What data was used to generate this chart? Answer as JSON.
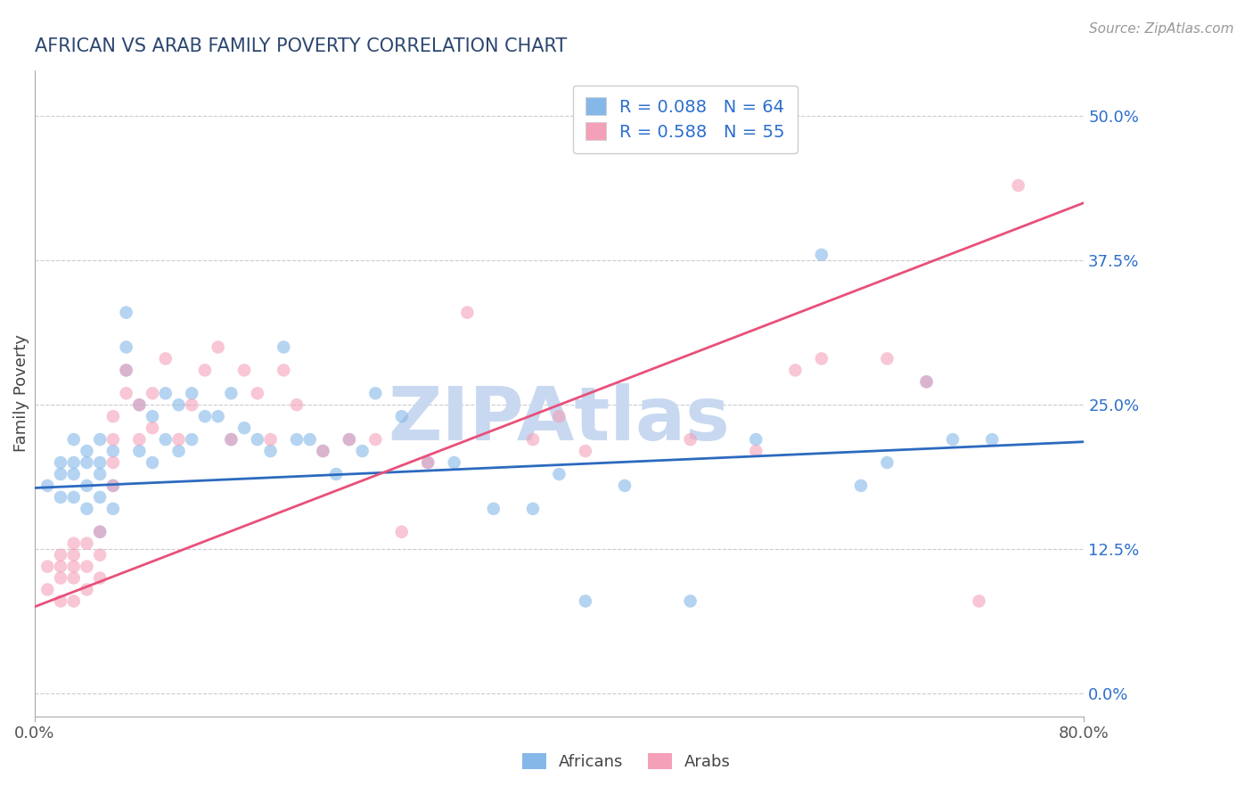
{
  "title": "AFRICAN VS ARAB FAMILY POVERTY CORRELATION CHART",
  "source": "Source: ZipAtlas.com",
  "ylabel": "Family Poverty",
  "xlim": [
    0.0,
    0.8
  ],
  "ylim": [
    -0.02,
    0.54
  ],
  "yticks": [
    0.0,
    0.125,
    0.25,
    0.375,
    0.5
  ],
  "ytick_labels": [
    "0.0%",
    "12.5%",
    "25.0%",
    "37.5%",
    "50.0%"
  ],
  "xticks": [
    0.0,
    0.8
  ],
  "xtick_labels": [
    "0.0%",
    "80.0%"
  ],
  "africans_R": 0.088,
  "africans_N": 64,
  "arabs_R": 0.588,
  "arabs_N": 55,
  "africans_color": "#85b8e8",
  "arabs_color": "#f4a0b8",
  "africans_line_color": "#2c6abf",
  "arabs_line_color": "#e8507a",
  "background_color": "#ffffff",
  "grid_color": "#cccccc",
  "title_color": "#2c4770",
  "legend_text_color": "#2c6fcc",
  "watermark_color": "#c8d8f0",
  "africans_line_start": 0.178,
  "africans_line_end": 0.218,
  "arabs_line_start": 0.075,
  "arabs_line_end": 0.425,
  "africans_x": [
    0.01,
    0.02,
    0.02,
    0.02,
    0.03,
    0.03,
    0.03,
    0.03,
    0.04,
    0.04,
    0.04,
    0.04,
    0.05,
    0.05,
    0.05,
    0.05,
    0.05,
    0.06,
    0.06,
    0.06,
    0.07,
    0.07,
    0.07,
    0.08,
    0.08,
    0.09,
    0.09,
    0.1,
    0.1,
    0.11,
    0.11,
    0.12,
    0.12,
    0.13,
    0.14,
    0.15,
    0.15,
    0.16,
    0.17,
    0.18,
    0.19,
    0.2,
    0.21,
    0.22,
    0.23,
    0.24,
    0.25,
    0.26,
    0.28,
    0.3,
    0.32,
    0.35,
    0.38,
    0.4,
    0.42,
    0.45,
    0.5,
    0.55,
    0.6,
    0.63,
    0.65,
    0.68,
    0.7,
    0.73
  ],
  "africans_y": [
    0.18,
    0.17,
    0.19,
    0.2,
    0.17,
    0.19,
    0.2,
    0.22,
    0.16,
    0.18,
    0.2,
    0.21,
    0.14,
    0.17,
    0.19,
    0.2,
    0.22,
    0.16,
    0.18,
    0.21,
    0.28,
    0.3,
    0.33,
    0.21,
    0.25,
    0.2,
    0.24,
    0.22,
    0.26,
    0.21,
    0.25,
    0.22,
    0.26,
    0.24,
    0.24,
    0.22,
    0.26,
    0.23,
    0.22,
    0.21,
    0.3,
    0.22,
    0.22,
    0.21,
    0.19,
    0.22,
    0.21,
    0.26,
    0.24,
    0.2,
    0.2,
    0.16,
    0.16,
    0.19,
    0.08,
    0.18,
    0.08,
    0.22,
    0.38,
    0.18,
    0.2,
    0.27,
    0.22,
    0.22
  ],
  "arabs_x": [
    0.01,
    0.01,
    0.02,
    0.02,
    0.02,
    0.02,
    0.03,
    0.03,
    0.03,
    0.03,
    0.03,
    0.04,
    0.04,
    0.04,
    0.05,
    0.05,
    0.05,
    0.06,
    0.06,
    0.06,
    0.06,
    0.07,
    0.07,
    0.08,
    0.08,
    0.09,
    0.09,
    0.1,
    0.11,
    0.12,
    0.13,
    0.14,
    0.15,
    0.16,
    0.17,
    0.18,
    0.19,
    0.2,
    0.22,
    0.24,
    0.26,
    0.28,
    0.3,
    0.33,
    0.38,
    0.4,
    0.42,
    0.5,
    0.55,
    0.58,
    0.6,
    0.65,
    0.68,
    0.72,
    0.75
  ],
  "arabs_y": [
    0.09,
    0.11,
    0.08,
    0.1,
    0.11,
    0.12,
    0.08,
    0.1,
    0.11,
    0.12,
    0.13,
    0.09,
    0.11,
    0.13,
    0.1,
    0.12,
    0.14,
    0.22,
    0.24,
    0.18,
    0.2,
    0.26,
    0.28,
    0.22,
    0.25,
    0.23,
    0.26,
    0.29,
    0.22,
    0.25,
    0.28,
    0.3,
    0.22,
    0.28,
    0.26,
    0.22,
    0.28,
    0.25,
    0.21,
    0.22,
    0.22,
    0.14,
    0.2,
    0.33,
    0.22,
    0.24,
    0.21,
    0.22,
    0.21,
    0.28,
    0.29,
    0.29,
    0.27,
    0.08,
    0.44
  ]
}
